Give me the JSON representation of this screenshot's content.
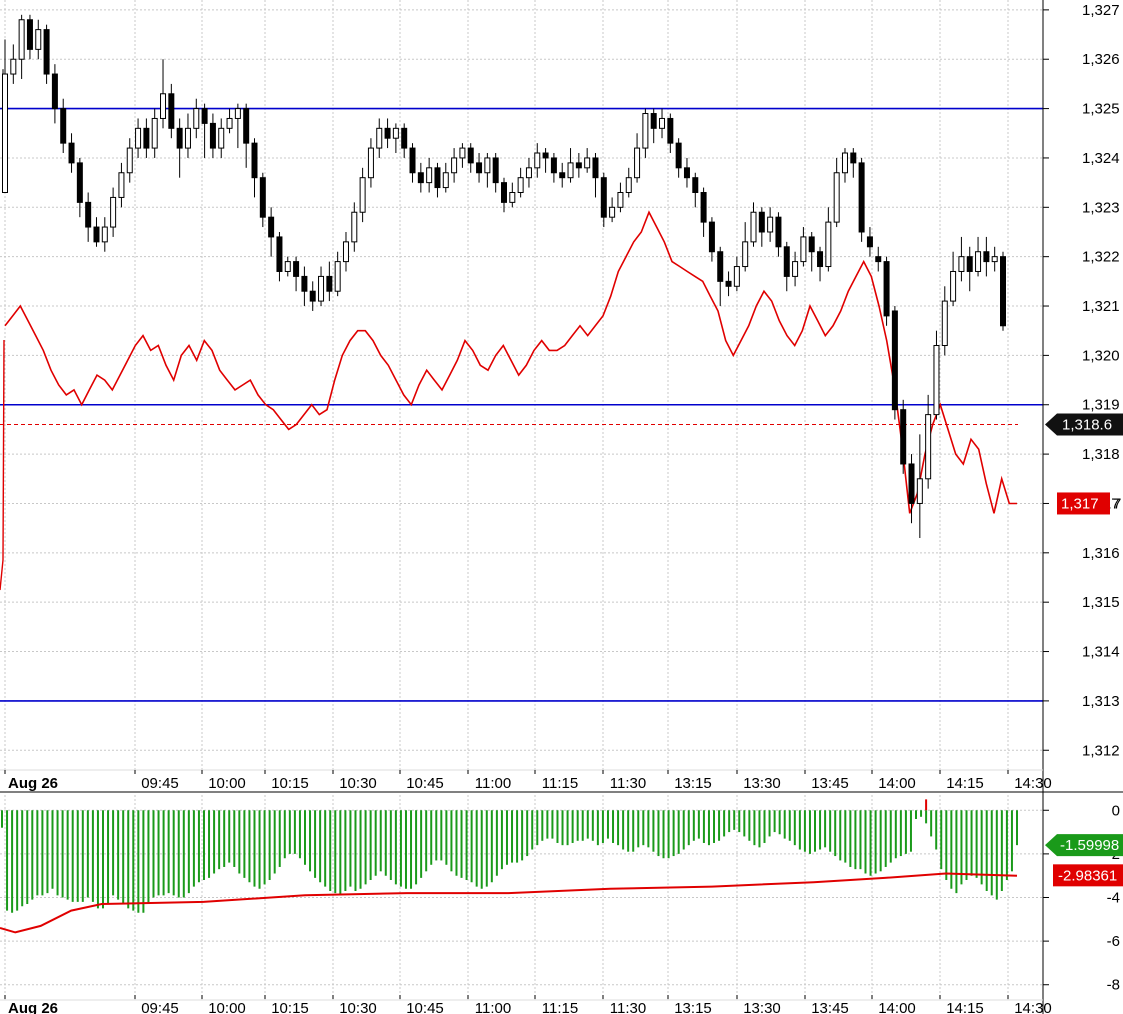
{
  "colors": {
    "grid": "#c8c8c8",
    "level": "#0000cc",
    "candle": "#000000",
    "red_line": "#e00000",
    "histogram": "#1a9a1a",
    "last_tag": "#111111",
    "red_tag": "#e00000",
    "green_tag": "#1a9a1a"
  },
  "chart_data": [
    {
      "type": "candlestick",
      "y_ticks": [
        "1,327",
        "1,326",
        "1,325",
        "1,324",
        "1,323",
        "1,322",
        "1,321",
        "1,320",
        "1,319",
        "1,318",
        "1,317",
        "1,316",
        "1,315",
        "1,314",
        "1,313",
        "1,312"
      ],
      "ylim": [
        1311.6,
        1327.2
      ],
      "horizontal_levels": [
        1325.0,
        1319.0,
        1313.0
      ],
      "last_price": 1318.6,
      "last_price_label": "1,318.6",
      "price_bars": [
        [
          1323.3,
          1325.7,
          1326.4,
          1323.3
        ],
        [
          1325.7,
          1326.0,
          1326.3,
          1325.5
        ],
        [
          1326.0,
          1326.8,
          1326.9,
          1325.6
        ],
        [
          1326.8,
          1326.2,
          1326.9,
          1326.0
        ],
        [
          1326.2,
          1326.6,
          1326.8,
          1326.0
        ],
        [
          1326.6,
          1325.7,
          1326.7,
          1325.5
        ],
        [
          1325.7,
          1325.0,
          1325.9,
          1324.7
        ],
        [
          1325.0,
          1324.3,
          1325.2,
          1324.1
        ],
        [
          1324.3,
          1323.9,
          1324.5,
          1323.7
        ],
        [
          1323.9,
          1323.1,
          1324.0,
          1322.8
        ],
        [
          1323.1,
          1322.6,
          1323.3,
          1322.3
        ],
        [
          1322.6,
          1322.3,
          1322.8,
          1322.2
        ],
        [
          1322.3,
          1322.6,
          1322.8,
          1322.1
        ],
        [
          1322.6,
          1323.2,
          1323.4,
          1322.4
        ],
        [
          1323.2,
          1323.7,
          1323.9,
          1323.0
        ],
        [
          1323.7,
          1324.2,
          1324.4,
          1323.5
        ],
        [
          1324.2,
          1324.6,
          1324.8,
          1324.0
        ],
        [
          1324.6,
          1324.2,
          1324.8,
          1324.0
        ],
        [
          1324.2,
          1324.8,
          1325.0,
          1324.0
        ],
        [
          1324.8,
          1325.3,
          1326.0,
          1324.6
        ],
        [
          1325.3,
          1324.6,
          1325.5,
          1324.4
        ],
        [
          1324.6,
          1324.2,
          1324.8,
          1323.6
        ],
        [
          1324.2,
          1324.6,
          1324.9,
          1324.0
        ],
        [
          1324.6,
          1325.0,
          1325.2,
          1324.4
        ],
        [
          1325.0,
          1324.7,
          1325.1,
          1324.0
        ],
        [
          1324.7,
          1324.2,
          1324.9,
          1324.0
        ],
        [
          1324.2,
          1324.6,
          1324.8,
          1324.0
        ],
        [
          1324.6,
          1324.8,
          1325.0,
          1324.5
        ],
        [
          1324.8,
          1325.0,
          1325.1,
          1324.2
        ],
        [
          1325.0,
          1324.3,
          1325.1,
          1323.8
        ],
        [
          1324.3,
          1323.6,
          1324.4,
          1323.2
        ],
        [
          1323.6,
          1322.8,
          1323.7,
          1322.6
        ],
        [
          1322.8,
          1322.4,
          1323.0,
          1322.0
        ],
        [
          1322.4,
          1321.7,
          1322.5,
          1321.5
        ],
        [
          1321.7,
          1321.9,
          1322.0,
          1321.6
        ],
        [
          1321.9,
          1321.6,
          1322.0,
          1321.3
        ],
        [
          1321.6,
          1321.3,
          1321.8,
          1321.0
        ],
        [
          1321.3,
          1321.1,
          1321.5,
          1320.9
        ],
        [
          1321.1,
          1321.6,
          1321.8,
          1321.0
        ],
        [
          1321.6,
          1321.3,
          1321.9,
          1321.1
        ],
        [
          1321.3,
          1321.9,
          1322.1,
          1321.2
        ],
        [
          1321.9,
          1322.3,
          1322.5,
          1321.7
        ],
        [
          1322.3,
          1322.9,
          1323.1,
          1322.1
        ],
        [
          1322.9,
          1323.6,
          1323.8,
          1322.7
        ],
        [
          1323.6,
          1324.2,
          1324.4,
          1323.4
        ],
        [
          1324.2,
          1324.6,
          1324.8,
          1324.0
        ],
        [
          1324.6,
          1324.4,
          1324.8,
          1324.2
        ],
        [
          1324.4,
          1324.6,
          1324.7,
          1324.1
        ],
        [
          1324.6,
          1324.2,
          1324.7,
          1324.0
        ],
        [
          1324.2,
          1323.7,
          1324.3,
          1323.5
        ],
        [
          1323.7,
          1323.5,
          1323.9,
          1323.3
        ],
        [
          1323.5,
          1323.8,
          1324.0,
          1323.3
        ],
        [
          1323.8,
          1323.4,
          1323.9,
          1323.2
        ],
        [
          1323.4,
          1323.7,
          1323.9,
          1323.3
        ],
        [
          1323.7,
          1324.0,
          1324.2,
          1323.5
        ],
        [
          1324.0,
          1324.2,
          1324.3,
          1323.8
        ],
        [
          1324.2,
          1323.9,
          1324.3,
          1323.7
        ],
        [
          1323.9,
          1323.7,
          1324.1,
          1323.5
        ],
        [
          1323.7,
          1324.0,
          1324.1,
          1323.4
        ],
        [
          1324.0,
          1323.5,
          1324.1,
          1323.3
        ],
        [
          1323.5,
          1323.1,
          1323.6,
          1322.9
        ],
        [
          1323.1,
          1323.3,
          1323.5,
          1323.0
        ],
        [
          1323.3,
          1323.6,
          1323.8,
          1323.2
        ],
        [
          1323.6,
          1323.8,
          1324.0,
          1323.4
        ],
        [
          1323.8,
          1324.1,
          1324.3,
          1323.6
        ],
        [
          1324.1,
          1324.0,
          1324.2,
          1323.7
        ],
        [
          1324.0,
          1323.7,
          1324.1,
          1323.5
        ],
        [
          1323.7,
          1323.6,
          1323.9,
          1323.4
        ],
        [
          1323.6,
          1323.9,
          1324.2,
          1323.5
        ],
        [
          1323.9,
          1323.8,
          1324.1,
          1323.6
        ],
        [
          1323.8,
          1324.0,
          1324.2,
          1323.7
        ],
        [
          1324.0,
          1323.6,
          1324.1,
          1323.2
        ],
        [
          1323.6,
          1322.8,
          1323.7,
          1322.6
        ],
        [
          1322.8,
          1323.0,
          1323.2,
          1322.7
        ],
        [
          1323.0,
          1323.3,
          1323.5,
          1322.9
        ],
        [
          1323.3,
          1323.6,
          1323.8,
          1323.2
        ],
        [
          1323.6,
          1324.2,
          1324.5,
          1323.5
        ],
        [
          1324.2,
          1324.9,
          1325.0,
          1324.0
        ],
        [
          1324.9,
          1324.6,
          1325.0,
          1324.3
        ],
        [
          1324.6,
          1324.8,
          1325.0,
          1324.4
        ],
        [
          1324.8,
          1324.3,
          1324.9,
          1324.1
        ],
        [
          1324.3,
          1323.8,
          1324.4,
          1323.6
        ],
        [
          1323.8,
          1323.6,
          1324.0,
          1323.4
        ],
        [
          1323.6,
          1323.3,
          1323.7,
          1323.0
        ],
        [
          1323.3,
          1322.7,
          1323.4,
          1322.4
        ],
        [
          1322.7,
          1322.1,
          1322.8,
          1321.9
        ],
        [
          1322.1,
          1321.5,
          1322.2,
          1321.0
        ],
        [
          1321.5,
          1321.4,
          1321.7,
          1321.2
        ],
        [
          1321.4,
          1321.8,
          1322.0,
          1321.3
        ],
        [
          1321.8,
          1322.3,
          1322.7,
          1321.7
        ],
        [
          1322.3,
          1322.9,
          1323.1,
          1322.2
        ],
        [
          1322.9,
          1322.5,
          1323.0,
          1322.2
        ],
        [
          1322.5,
          1322.8,
          1323.0,
          1322.3
        ],
        [
          1322.8,
          1322.2,
          1322.9,
          1322.0
        ],
        [
          1322.2,
          1321.6,
          1322.3,
          1321.3
        ],
        [
          1321.6,
          1321.9,
          1322.1,
          1321.4
        ],
        [
          1321.9,
          1322.4,
          1322.6,
          1321.8
        ],
        [
          1322.4,
          1322.1,
          1322.5,
          1321.7
        ],
        [
          1322.1,
          1321.8,
          1322.2,
          1321.5
        ],
        [
          1321.8,
          1322.7,
          1323.0,
          1321.7
        ],
        [
          1322.7,
          1323.7,
          1324.0,
          1322.6
        ],
        [
          1323.7,
          1324.1,
          1324.2,
          1323.5
        ],
        [
          1324.1,
          1323.9,
          1324.2,
          1323.6
        ],
        [
          1323.9,
          1322.5,
          1324.0,
          1322.3
        ],
        [
          1322.4,
          1322.2,
          1322.6,
          1322.0
        ],
        [
          1322.0,
          1321.9,
          1322.2,
          1321.7
        ],
        [
          1321.9,
          1320.8,
          1322.0,
          1320.6
        ],
        [
          1320.9,
          1318.9,
          1321.0,
          1318.7
        ],
        [
          1318.9,
          1317.8,
          1319.1,
          1317.6
        ],
        [
          1317.8,
          1317.0,
          1318.0,
          1316.6
        ],
        [
          1317.0,
          1317.5,
          1318.4,
          1316.3
        ],
        [
          1317.5,
          1318.8,
          1319.2,
          1317.3
        ],
        [
          1318.8,
          1320.2,
          1320.5,
          1318.7
        ],
        [
          1320.2,
          1321.1,
          1321.4,
          1320.0
        ],
        [
          1321.1,
          1321.7,
          1322.1,
          1321.0
        ],
        [
          1321.7,
          1322.0,
          1322.4,
          1321.5
        ],
        [
          1322.0,
          1321.7,
          1322.2,
          1321.3
        ],
        [
          1321.7,
          1322.1,
          1322.4,
          1321.6
        ],
        [
          1322.1,
          1321.9,
          1322.4,
          1321.6
        ],
        [
          1321.9,
          1322.0,
          1322.2,
          1321.7
        ],
        [
          1322.0,
          1320.6,
          1322.1,
          1320.5
        ]
      ],
      "red_line": [
        1320.6,
        1320.8,
        1321.0,
        1320.7,
        1320.4,
        1320.1,
        1319.7,
        1319.4,
        1319.2,
        1319.3,
        1319.0,
        1319.3,
        1319.6,
        1319.5,
        1319.3,
        1319.6,
        1319.9,
        1320.2,
        1320.4,
        1320.1,
        1320.2,
        1319.8,
        1319.5,
        1320.0,
        1320.2,
        1319.9,
        1320.3,
        1320.1,
        1319.7,
        1319.5,
        1319.3,
        1319.4,
        1319.5,
        1319.2,
        1319.0,
        1318.9,
        1318.7,
        1318.5,
        1318.6,
        1318.8,
        1319.0,
        1318.8,
        1318.9,
        1319.5,
        1320.0,
        1320.3,
        1320.5,
        1320.5,
        1320.3,
        1320.0,
        1319.8,
        1319.5,
        1319.2,
        1319.0,
        1319.4,
        1319.7,
        1319.5,
        1319.3,
        1319.6,
        1319.9,
        1320.3,
        1320.1,
        1319.8,
        1319.7,
        1320.0,
        1320.2,
        1319.9,
        1319.6,
        1319.8,
        1320.1,
        1320.3,
        1320.1,
        1320.1,
        1320.2,
        1320.4,
        1320.6,
        1320.4,
        1320.6,
        1320.8,
        1321.2,
        1321.7,
        1322.0,
        1322.3,
        1322.5,
        1322.9,
        1322.6,
        1322.3,
        1321.9,
        1321.8,
        1321.7,
        1321.6,
        1321.5,
        1321.2,
        1320.9,
        1320.3,
        1320.0,
        1320.3,
        1320.6,
        1321.0,
        1321.3,
        1321.1,
        1320.7,
        1320.4,
        1320.2,
        1320.5,
        1321.0,
        1320.7,
        1320.4,
        1320.6,
        1320.9,
        1321.3,
        1321.6,
        1321.9,
        1321.6,
        1321.0,
        1320.3,
        1319.4,
        1318.2,
        1316.8,
        1317.2,
        1318.0,
        1318.6,
        1319.0,
        1318.5,
        1318.0,
        1317.8,
        1318.3,
        1318.1,
        1317.4,
        1316.8,
        1317.5,
        1317.0,
        1317.0
      ],
      "red_tag_value": 1317.0,
      "red_tag_label": "1,317",
      "red_tag_suffix": "7",
      "time_labels": [
        "Aug 26",
        "09:45",
        "10:00",
        "10:15",
        "10:30",
        "10:45",
        "11:00",
        "11:15",
        "11:30",
        "13:15",
        "13:30",
        "13:45",
        "14:00",
        "14:15",
        "14:30"
      ]
    },
    {
      "type": "bar",
      "y_ticks": [
        "0",
        "-2",
        "-4",
        "-6",
        "-8"
      ],
      "y_tick_values": [
        0,
        -2,
        -4,
        -6,
        -8
      ],
      "ylim": [
        -8.7,
        0.7
      ],
      "green_tag_label": "-1.59998",
      "green_tag_value": -1.59998,
      "red_tag_label": "-2.98361",
      "red_tag_value": -2.98361,
      "histogram": [
        -0.8,
        -4.6,
        -4.7,
        -4.6,
        -4.4,
        -4.3,
        -4.1,
        -3.9,
        -3.9,
        -3.8,
        -3.6,
        -3.9,
        -4.0,
        -4.1,
        -4.2,
        -4.2,
        -4.2,
        -4.0,
        -4.2,
        -4.5,
        -4.5,
        -4.3,
        -3.9,
        -4.1,
        -4.3,
        -4.5,
        -4.6,
        -4.7,
        -4.7,
        -4.3,
        -4.0,
        -3.9,
        -3.9,
        -3.8,
        -3.9,
        -4.0,
        -4.0,
        -3.8,
        -3.5,
        -3.3,
        -3.2,
        -3.1,
        -2.9,
        -2.7,
        -2.6,
        -2.4,
        -2.6,
        -2.9,
        -3.1,
        -3.3,
        -3.5,
        -3.6,
        -3.4,
        -3.2,
        -2.9,
        -2.6,
        -2.2,
        -2.0,
        -2.0,
        -2.2,
        -2.5,
        -2.8,
        -3.1,
        -3.3,
        -3.5,
        -3.7,
        -3.8,
        -3.9,
        -3.7,
        -3.5,
        -3.7,
        -3.6,
        -3.4,
        -3.2,
        -3.0,
        -2.8,
        -3.0,
        -3.2,
        -3.4,
        -3.5,
        -3.6,
        -3.6,
        -3.4,
        -3.1,
        -2.8,
        -2.5,
        -2.3,
        -2.3,
        -2.5,
        -2.8,
        -3.0,
        -3.1,
        -3.2,
        -3.3,
        -3.5,
        -3.6,
        -3.5,
        -3.3,
        -3.0,
        -2.7,
        -2.5,
        -2.4,
        -2.4,
        -2.3,
        -2.1,
        -1.8,
        -1.6,
        -1.4,
        -1.3,
        -1.3,
        -1.5,
        -1.6,
        -1.6,
        -1.5,
        -1.4,
        -1.4,
        -1.3,
        -1.4,
        -1.6,
        -1.5,
        -1.3,
        -1.5,
        -1.6,
        -1.8,
        -1.9,
        -1.9,
        -1.7,
        -1.6,
        -1.7,
        -1.9,
        -2.1,
        -2.2,
        -2.2,
        -2.1,
        -2.0,
        -1.8,
        -1.6,
        -1.4,
        -1.3,
        -1.5,
        -1.6,
        -1.5,
        -1.4,
        -1.2,
        -1.0,
        -0.9,
        -1.0,
        -1.2,
        -1.4,
        -1.6,
        -1.7,
        -1.5,
        -1.2,
        -1.0,
        -1.1,
        -1.3,
        -1.4,
        -1.6,
        -1.8,
        -1.9,
        -2.0,
        -1.9,
        -1.8,
        -1.7,
        -1.9,
        -2.1,
        -2.3,
        -2.4,
        -2.6,
        -2.7,
        -2.7,
        -2.9,
        -3.0,
        -2.9,
        -2.8,
        -2.6,
        -2.4,
        -2.2,
        -2.1,
        -2.0,
        -1.9,
        -0.4,
        -0.3,
        -0.6,
        -1.2,
        -1.8,
        -2.7,
        -3.2,
        -3.6,
        -3.8,
        -3.4,
        -3.2,
        -3.0,
        -3.1,
        -3.4,
        -3.7,
        -3.9,
        -4.1,
        -3.7,
        -3.2,
        -2.8,
        -1.6
      ],
      "red_line_points": [
        [
          0,
          -5.4
        ],
        [
          0.015,
          -5.6
        ],
        [
          0.04,
          -5.3
        ],
        [
          0.07,
          -4.6
        ],
        [
          0.1,
          -4.3
        ],
        [
          0.2,
          -4.2
        ],
        [
          0.3,
          -3.9
        ],
        [
          0.4,
          -3.8
        ],
        [
          0.5,
          -3.8
        ],
        [
          0.6,
          -3.6
        ],
        [
          0.7,
          -3.5
        ],
        [
          0.8,
          -3.3
        ],
        [
          0.87,
          -3.1
        ],
        [
          0.93,
          -2.9
        ],
        [
          1.0,
          -3.0
        ]
      ],
      "red_marker_index": 183,
      "red_marker_value": 0.5,
      "time_labels": [
        "Aug 26",
        "09:45",
        "10:00",
        "10:15",
        "10:30",
        "10:45",
        "11:00",
        "11:15",
        "11:30",
        "13:15",
        "13:30",
        "13:45",
        "14:00",
        "14:15",
        "14:30"
      ]
    }
  ]
}
